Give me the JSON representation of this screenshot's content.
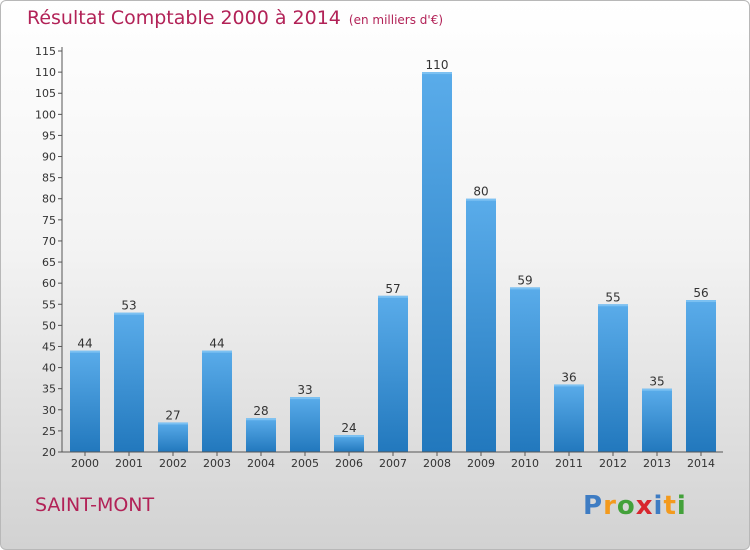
{
  "title": "Résultat Comptable 2000 à 2014",
  "subtitle": "(en milliers d'€)",
  "commune": "SAINT-MONT",
  "logo": {
    "p": "P",
    "r": "r",
    "o": "o",
    "x": "x",
    "i1": "i",
    "t": "t",
    "i2": "i"
  },
  "colors": {
    "title": "#b22257",
    "bar_light": "#5aacea",
    "bar_dark": "#2278bd",
    "bar_top": "#7cc1f2"
  },
  "chart_data": {
    "type": "bar",
    "title": "Résultat Comptable 2000 à 2014",
    "xlabel": "",
    "ylabel": "",
    "categories": [
      "2000",
      "2001",
      "2002",
      "2003",
      "2004",
      "2005",
      "2006",
      "2007",
      "2008",
      "2009",
      "2010",
      "2011",
      "2012",
      "2013",
      "2014"
    ],
    "values": [
      44,
      53,
      27,
      44,
      28,
      33,
      24,
      57,
      110,
      80,
      59,
      36,
      55,
      35,
      56
    ],
    "ylim": [
      20,
      115
    ],
    "yticks": [
      20,
      25,
      30,
      35,
      40,
      45,
      50,
      55,
      60,
      65,
      70,
      75,
      80,
      85,
      90,
      95,
      100,
      105,
      110,
      115
    ],
    "data_labels": true,
    "grid": false,
    "legend": "none"
  }
}
